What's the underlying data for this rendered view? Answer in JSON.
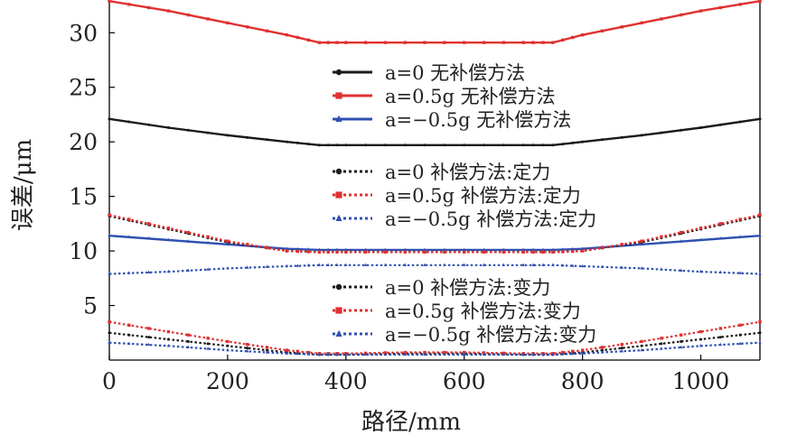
{
  "chart_data": {
    "type": "line",
    "xlabel": "路径/mm",
    "ylabel": "误差/μm",
    "xlim": [
      0,
      1100
    ],
    "ylim": [
      0,
      33
    ],
    "xticks": [
      0,
      200,
      400,
      600,
      800,
      1000
    ],
    "yticks": [
      5,
      10,
      15,
      20,
      25,
      30
    ],
    "grid": false,
    "legend_placement": "inside-center, three groups",
    "series": [
      {
        "name": "a=0 无补偿方法",
        "color": "#1a1a1a",
        "dash": "solid",
        "marker": "circle",
        "x": [
          0,
          100,
          200,
          300,
          355,
          400,
          500,
          600,
          700,
          750,
          800,
          900,
          1000,
          1100
        ],
        "y": [
          22.1,
          21.3,
          20.6,
          20.0,
          19.7,
          19.7,
          19.7,
          19.7,
          19.7,
          19.7,
          20.0,
          20.6,
          21.3,
          22.1
        ]
      },
      {
        "name": "a=0.5g 无补偿方法",
        "color": "#e03030",
        "dash": "solid",
        "marker": "square",
        "x": [
          0,
          100,
          200,
          300,
          355,
          400,
          500,
          600,
          700,
          750,
          800,
          900,
          1000,
          1100
        ],
        "y": [
          32.9,
          32.0,
          30.9,
          29.8,
          29.1,
          29.1,
          29.1,
          29.1,
          29.1,
          29.1,
          29.8,
          30.9,
          32.0,
          32.9
        ]
      },
      {
        "name": "a=−0.5g 无补偿方法",
        "color": "#3050b0",
        "dash": "solid",
        "marker": "triangle",
        "x": [
          0,
          100,
          200,
          300,
          355,
          400,
          500,
          600,
          700,
          750,
          800,
          900,
          1000,
          1100
        ],
        "y": [
          11.4,
          11.0,
          10.6,
          10.2,
          10.1,
          10.1,
          10.1,
          10.1,
          10.1,
          10.1,
          10.2,
          10.6,
          11.0,
          11.4
        ]
      },
      {
        "name": "a=0 补偿方法:定力",
        "color": "#1a1a1a",
        "dash": "dotted",
        "marker": "circle",
        "x": [
          0,
          100,
          200,
          300,
          355,
          400,
          500,
          600,
          700,
          750,
          800,
          900,
          1000,
          1100
        ],
        "y": [
          13.2,
          12.0,
          10.8,
          10.0,
          9.9,
          9.9,
          9.9,
          9.9,
          9.9,
          9.9,
          10.0,
          10.8,
          12.0,
          13.2
        ]
      },
      {
        "name": "a=0.5g 补偿方法:定力",
        "color": "#e03030",
        "dash": "dotted",
        "marker": "square",
        "x": [
          0,
          100,
          200,
          300,
          355,
          400,
          500,
          600,
          700,
          750,
          800,
          900,
          1000,
          1100
        ],
        "y": [
          13.3,
          12.1,
          10.9,
          10.0,
          9.9,
          9.9,
          9.9,
          9.9,
          9.9,
          9.9,
          10.0,
          10.9,
          12.1,
          13.3
        ]
      },
      {
        "name": "a=−0.5g 补偿方法:定力",
        "color": "#3050b0",
        "dash": "dotted",
        "marker": "triangle",
        "x": [
          0,
          100,
          200,
          300,
          355,
          400,
          500,
          600,
          700,
          750,
          800,
          900,
          1000,
          1100
        ],
        "y": [
          7.9,
          8.1,
          8.4,
          8.6,
          8.7,
          8.7,
          8.7,
          8.7,
          8.7,
          8.7,
          8.6,
          8.4,
          8.1,
          7.9
        ]
      },
      {
        "name": "a=0 补偿方法:变力",
        "color": "#1a1a1a",
        "dash": "dotted",
        "marker": "circle",
        "x": [
          0,
          100,
          200,
          300,
          355,
          400,
          500,
          600,
          700,
          750,
          800,
          900,
          1000,
          1100
        ],
        "y": [
          2.5,
          1.9,
          1.3,
          0.7,
          0.5,
          0.5,
          0.6,
          0.6,
          0.5,
          0.5,
          0.7,
          1.3,
          1.9,
          2.5
        ]
      },
      {
        "name": "a=0.5g 补偿方法:变力",
        "color": "#e03030",
        "dash": "dotted",
        "marker": "square",
        "x": [
          0,
          100,
          200,
          300,
          355,
          400,
          500,
          600,
          700,
          750,
          800,
          900,
          1000,
          1100
        ],
        "y": [
          3.5,
          2.6,
          1.7,
          0.9,
          0.6,
          0.6,
          0.7,
          0.7,
          0.6,
          0.6,
          0.9,
          1.7,
          2.6,
          3.5
        ]
      },
      {
        "name": "a=−0.5g 补偿方法:变力",
        "color": "#3050b0",
        "dash": "dotted",
        "marker": "triangle",
        "x": [
          0,
          100,
          200,
          300,
          355,
          400,
          500,
          600,
          700,
          750,
          800,
          900,
          1000,
          1100
        ],
        "y": [
          1.6,
          1.3,
          0.9,
          0.6,
          0.5,
          0.5,
          0.5,
          0.5,
          0.5,
          0.5,
          0.6,
          0.9,
          1.3,
          1.6
        ]
      }
    ],
    "legend_groups": [
      [
        0,
        1,
        2
      ],
      [
        3,
        4,
        5
      ],
      [
        6,
        7,
        8
      ]
    ]
  }
}
